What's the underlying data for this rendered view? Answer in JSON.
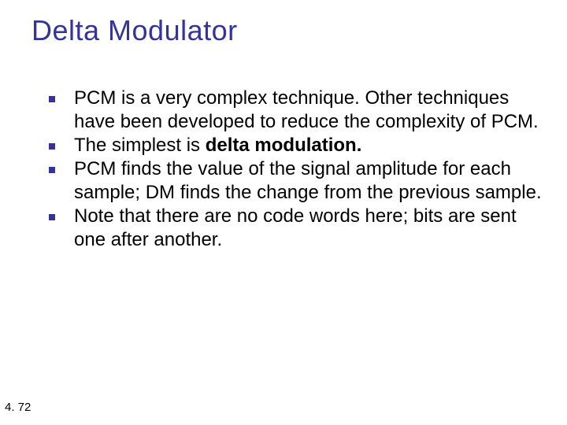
{
  "slide": {
    "title": "Delta Modulator",
    "title_color": "#333399",
    "title_fontsize": 36,
    "bullet_marker_color": "#333399",
    "body_fontsize": 24,
    "body_color": "#000000",
    "background_color": "#ffffff",
    "bullets": [
      {
        "text_before": "PCM is a very complex technique. Other techniques have been developed to reduce the complexity of PCM.",
        "bold": "",
        "text_after": ""
      },
      {
        "text_before": "The simplest is ",
        "bold": "delta modulation.",
        "text_after": ""
      },
      {
        "text_before": "PCM finds the value of the signal amplitude for each sample; DM finds the change from the previous sample.",
        "bold": "",
        "text_after": ""
      },
      {
        "text_before": "Note that there are no code words here; bits are sent one after another.",
        "bold": "",
        "text_after": ""
      }
    ],
    "footer": "4. 72"
  }
}
